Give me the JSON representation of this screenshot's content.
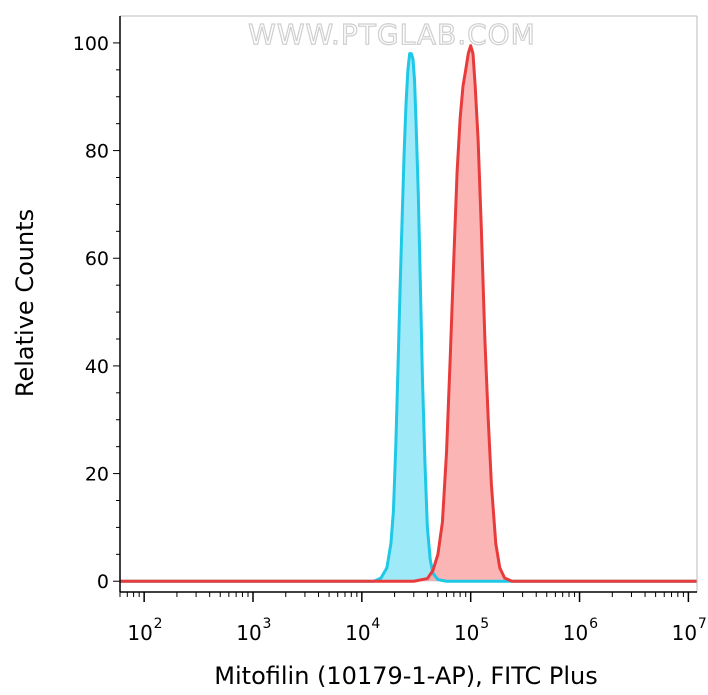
{
  "watermark": "WWW.PTGLAB.COM",
  "chart_data": {
    "type": "area",
    "title": "",
    "xlabel": "Mitofilin (10179-1-AP), FITC Plus",
    "ylabel": "Relative Counts",
    "x_scale": "log",
    "xlim": [
      60,
      12000000
    ],
    "ylim": [
      -2,
      105
    ],
    "grid": false,
    "legend": "none",
    "y_ticks": [
      {
        "value": 0,
        "label": "0"
      },
      {
        "value": 20,
        "label": "20"
      },
      {
        "value": 40,
        "label": "40"
      },
      {
        "value": 60,
        "label": "60"
      },
      {
        "value": 80,
        "label": "80"
      },
      {
        "value": 100,
        "label": "100"
      }
    ],
    "x_ticks": [
      {
        "value": 100,
        "base": "10",
        "exp": "2"
      },
      {
        "value": 1000,
        "base": "10",
        "exp": "3"
      },
      {
        "value": 10000,
        "base": "10",
        "exp": "4"
      },
      {
        "value": 100000,
        "base": "10",
        "exp": "5"
      },
      {
        "value": 1000000,
        "base": "10",
        "exp": "6"
      },
      {
        "value": 10000000,
        "base": "10",
        "exp": "7"
      }
    ],
    "series": [
      {
        "stroke": "#1ec8e6",
        "fill": "#8ee6f7",
        "points": [
          [
            60,
            0
          ],
          [
            13000,
            0
          ],
          [
            15000,
            0.6
          ],
          [
            17000,
            2.5
          ],
          [
            18500,
            7
          ],
          [
            19500,
            13
          ],
          [
            20500,
            25
          ],
          [
            21500,
            40
          ],
          [
            22500,
            55
          ],
          [
            23500,
            68
          ],
          [
            24500,
            80
          ],
          [
            25500,
            89
          ],
          [
            26500,
            95
          ],
          [
            27500,
            98
          ],
          [
            28500,
            98
          ],
          [
            29500,
            97
          ],
          [
            30500,
            93
          ],
          [
            31500,
            85
          ],
          [
            33000,
            72
          ],
          [
            34500,
            55
          ],
          [
            36000,
            38
          ],
          [
            38000,
            22
          ],
          [
            40000,
            10
          ],
          [
            42500,
            4
          ],
          [
            45000,
            1.5
          ],
          [
            50000,
            0.3
          ],
          [
            60000,
            0
          ],
          [
            12000000,
            0
          ]
        ]
      },
      {
        "stroke": "#e83c3c",
        "fill": "#fca8a8",
        "points": [
          [
            60,
            0
          ],
          [
            30000,
            0
          ],
          [
            40000,
            0.5
          ],
          [
            45000,
            2
          ],
          [
            50000,
            5
          ],
          [
            55000,
            11
          ],
          [
            60000,
            24
          ],
          [
            65000,
            42
          ],
          [
            70000,
            60
          ],
          [
            75000,
            76
          ],
          [
            80000,
            86
          ],
          [
            85000,
            92
          ],
          [
            90000,
            95
          ],
          [
            95000,
            98
          ],
          [
            100000,
            99.5
          ],
          [
            105000,
            98
          ],
          [
            110000,
            92
          ],
          [
            117000,
            82
          ],
          [
            125000,
            66
          ],
          [
            135000,
            45
          ],
          [
            145000,
            30
          ],
          [
            155000,
            18
          ],
          [
            170000,
            7
          ],
          [
            185000,
            2.5
          ],
          [
            205000,
            0.6
          ],
          [
            240000,
            0
          ],
          [
            12000000,
            0
          ]
        ]
      }
    ]
  }
}
